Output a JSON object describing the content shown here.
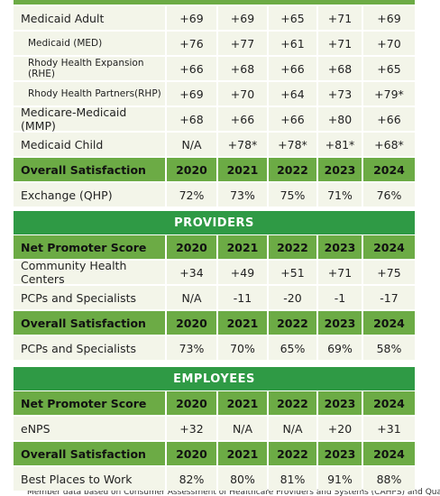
{
  "medicaid": {
    "rows": [
      {
        "label": "Medicaid Adult",
        "values": [
          "+69",
          "+69",
          "+65",
          "+71",
          "+69"
        ],
        "subrows": [
          {
            "label": "Medicaid (MED)",
            "values": [
              "+76",
              "+77",
              "+61",
              "+71",
              "+70"
            ]
          },
          {
            "label": "Rhody Health Expansion (RHE)",
            "values": [
              "+66",
              "+68",
              "+66",
              "+68",
              "+65"
            ]
          },
          {
            "label": "Rhody Health Partners(RHP)",
            "values": [
              "+69",
              "+70",
              "+64",
              "+73",
              "+79*"
            ]
          }
        ]
      },
      {
        "label": "Medicare-Medicaid (MMP)",
        "values": [
          "+68",
          "+66",
          "+66",
          "+80",
          "+66"
        ],
        "subrows": []
      },
      {
        "label": "Medicaid Child",
        "values": [
          "N/A",
          "+78*",
          "+78*",
          "+81*",
          "+68*"
        ],
        "subrows": []
      }
    ],
    "satisfaction": {
      "header": [
        "Overall Satisfaction",
        "2020",
        "2021",
        "2022",
        "2023",
        "2024"
      ],
      "rows": [
        {
          "label": "Exchange (QHP)",
          "values": [
            "72%",
            "73%",
            "75%",
            "71%",
            "76%"
          ]
        }
      ]
    }
  },
  "providers": {
    "title": "PROVIDERS",
    "nps": {
      "header": [
        "Net Promoter Score",
        "2020",
        "2021",
        "2022",
        "2023",
        "2024"
      ],
      "rows": [
        {
          "label": "Community Health Centers",
          "values": [
            "+34",
            "+49",
            "+51",
            "+71",
            "+75"
          ]
        },
        {
          "label": "PCPs and Specialists",
          "values": [
            "N/A",
            "-11",
            "-20",
            "-1",
            "-17"
          ]
        }
      ]
    },
    "satisfaction": {
      "header": [
        "Overall Satisfaction",
        "2020",
        "2021",
        "2022",
        "2023",
        "2024"
      ],
      "rows": [
        {
          "label": "PCPs and Specialists",
          "values": [
            "73%",
            "70%",
            "65%",
            "69%",
            "58%"
          ]
        }
      ]
    }
  },
  "employees": {
    "title": "EMPLOYEES",
    "nps": {
      "header": [
        "Net Promoter Score",
        "2020",
        "2021",
        "2022",
        "2023",
        "2024"
      ],
      "rows": [
        {
          "label": "eNPS",
          "values": [
            "+32",
            "N/A",
            "N/A",
            "+20",
            "+31"
          ]
        }
      ]
    },
    "satisfaction": {
      "header": [
        "Overall Satisfaction",
        "2020",
        "2021",
        "2022",
        "2023",
        "2024"
      ],
      "rows": [
        {
          "label": "Best Places to Work",
          "values": [
            "82%",
            "80%",
            "81%",
            "91%",
            "88%"
          ]
        }
      ]
    }
  },
  "footnote": "Member data based on Consumer Assessment of Healthcare Providers and Systems (CAHPS) and Qualified"
}
